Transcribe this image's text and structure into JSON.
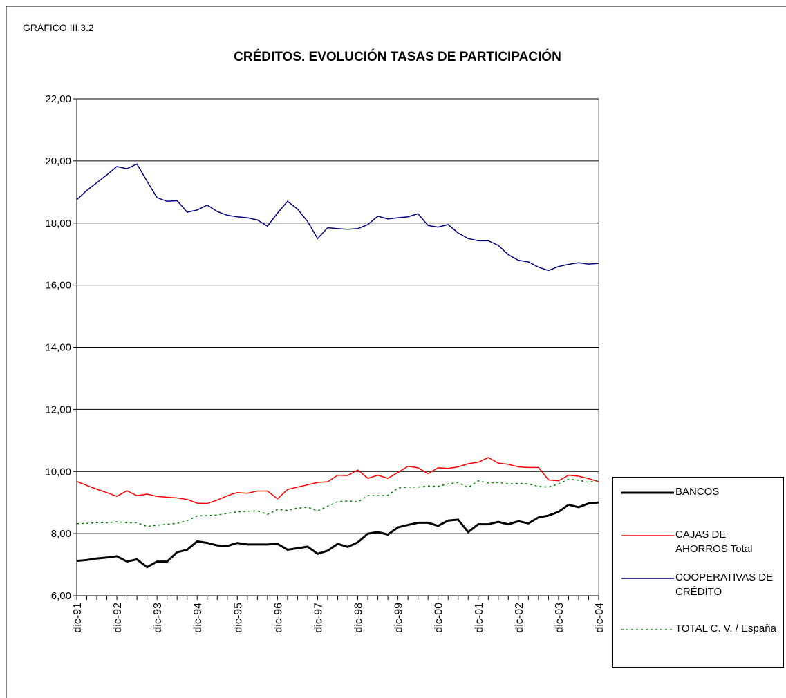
{
  "chart_data": {
    "type": "line",
    "label": "GRÁFICO III.3.2",
    "title": "CRÉDITOS. EVOLUCIÓN TASAS DE PARTICIPACIÓN",
    "categories": [
      "dic-91",
      null,
      null,
      null,
      "dic-92",
      null,
      null,
      null,
      "dic-93",
      null,
      null,
      null,
      "dic-94",
      null,
      null,
      null,
      "dic-95",
      null,
      null,
      null,
      "dic-96",
      null,
      null,
      null,
      "dic-97",
      null,
      null,
      null,
      "dic-98",
      null,
      null,
      null,
      "dic-99",
      null,
      null,
      null,
      "dic-00",
      null,
      null,
      null,
      "dic-01",
      null,
      null,
      null,
      "dic-02",
      null,
      null,
      null,
      "dic-03",
      null,
      null,
      null,
      "dic-04"
    ],
    "series": [
      {
        "name": "BANCOS",
        "color": "#000000",
        "values": [
          7.12,
          7.15,
          7.2,
          7.23,
          7.27,
          7.1,
          7.17,
          6.92,
          7.1,
          7.1,
          7.4,
          7.48,
          7.75,
          7.7,
          7.62,
          7.6,
          7.7,
          7.65,
          7.65,
          7.65,
          7.67,
          7.48,
          7.53,
          7.58,
          7.35,
          7.45,
          7.67,
          7.57,
          7.72,
          8.0,
          8.05,
          7.97,
          8.2,
          8.28,
          8.35,
          8.35,
          8.25,
          8.42,
          8.45,
          8.05,
          8.3,
          8.3,
          8.38,
          8.3,
          8.4,
          8.33,
          8.52,
          8.58,
          8.7,
          8.93,
          8.85,
          8.97,
          9.0
        ]
      },
      {
        "name": "CAJAS DE AHORROS Total",
        "color": "#ff0000",
        "values": [
          9.68,
          9.55,
          9.43,
          9.32,
          9.2,
          9.38,
          9.22,
          9.27,
          9.2,
          9.17,
          9.15,
          9.1,
          8.98,
          8.97,
          9.08,
          9.22,
          9.32,
          9.3,
          9.37,
          9.37,
          9.12,
          9.42,
          9.5,
          9.57,
          9.65,
          9.67,
          9.88,
          9.87,
          10.05,
          9.78,
          9.88,
          9.78,
          9.97,
          10.17,
          10.12,
          9.93,
          10.12,
          10.1,
          10.15,
          10.25,
          10.3,
          10.45,
          10.27,
          10.23,
          10.15,
          10.13,
          10.13,
          9.73,
          9.7,
          9.88,
          9.85,
          9.77,
          9.67
        ]
      },
      {
        "name": "COOPERATIVAS DE CRÉDITO",
        "color": "#000080",
        "values": [
          18.75,
          19.05,
          19.3,
          19.55,
          19.82,
          19.75,
          19.9,
          19.35,
          18.82,
          18.7,
          18.72,
          18.35,
          18.42,
          18.58,
          18.37,
          18.25,
          18.2,
          18.17,
          18.1,
          17.9,
          18.32,
          18.7,
          18.45,
          18.05,
          17.5,
          17.85,
          17.82,
          17.8,
          17.82,
          17.95,
          18.22,
          18.13,
          18.17,
          18.2,
          18.3,
          17.92,
          17.87,
          17.95,
          17.68,
          17.5,
          17.43,
          17.43,
          17.28,
          16.98,
          16.8,
          16.75,
          16.58,
          16.47,
          16.6,
          16.67,
          16.72,
          16.68,
          16.7
        ]
      },
      {
        "name": "TOTAL  C. V. / España",
        "color": "#008000",
        "dashed": true,
        "values": [
          8.32,
          8.33,
          8.35,
          8.35,
          8.38,
          8.35,
          8.35,
          8.23,
          8.27,
          8.3,
          8.33,
          8.42,
          8.57,
          8.58,
          8.6,
          8.65,
          8.7,
          8.72,
          8.73,
          8.62,
          8.78,
          8.75,
          8.82,
          8.85,
          8.73,
          8.88,
          9.03,
          9.05,
          9.02,
          9.22,
          9.22,
          9.23,
          9.47,
          9.5,
          9.5,
          9.53,
          9.52,
          9.6,
          9.65,
          9.48,
          9.7,
          9.63,
          9.65,
          9.6,
          9.62,
          9.6,
          9.52,
          9.5,
          9.6,
          9.75,
          9.72,
          9.65,
          9.72
        ]
      }
    ],
    "ylim": [
      6,
      22
    ],
    "yticks": [
      {
        "value": 6,
        "label": "6,00"
      },
      {
        "value": 8,
        "label": "8,00"
      },
      {
        "value": 10,
        "label": "10,00"
      },
      {
        "value": 12,
        "label": "12,00"
      },
      {
        "value": 14,
        "label": "14,00"
      },
      {
        "value": 16,
        "label": "16,00"
      },
      {
        "value": 18,
        "label": "18,00"
      },
      {
        "value": 20,
        "label": "20,00"
      },
      {
        "value": 22,
        "label": "22,00"
      }
    ],
    "grid": true,
    "legend": "right"
  }
}
